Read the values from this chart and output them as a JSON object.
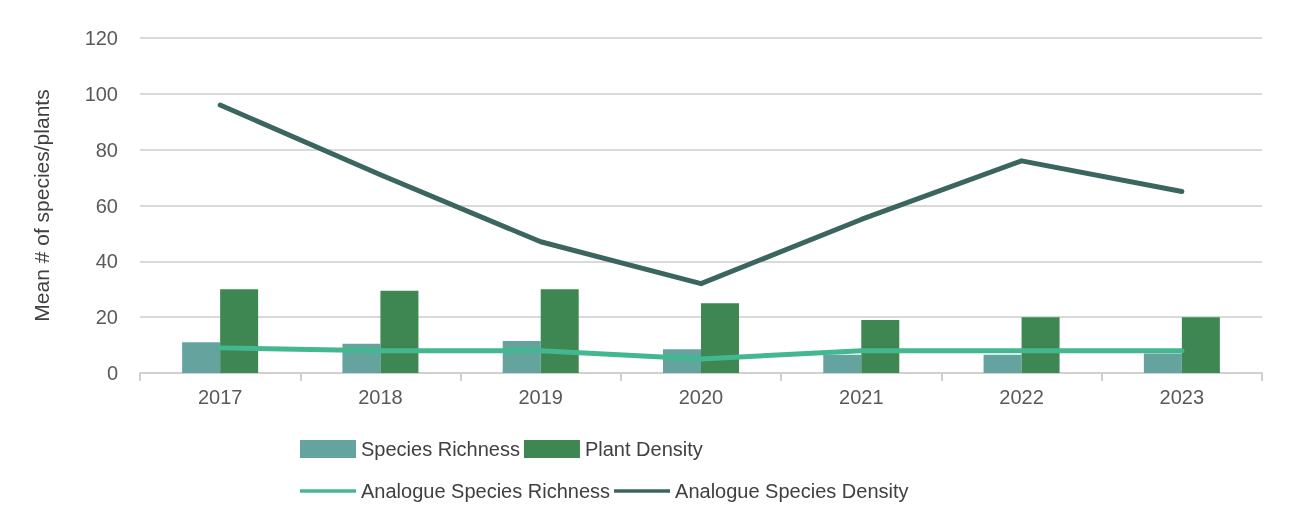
{
  "chart_data": {
    "type": "bar",
    "ylabel": "Mean # of species/plants",
    "categories": [
      "2017",
      "2018",
      "2019",
      "2020",
      "2021",
      "2022",
      "2023"
    ],
    "series": [
      {
        "name": "Species Richness",
        "color": "#65a39f",
        "values": [
          11,
          10.5,
          11.5,
          8.5,
          6.5,
          6.5,
          7
        ]
      },
      {
        "name": "Plant Density",
        "color": "#3e8752",
        "values": [
          30,
          29.5,
          30,
          25,
          19,
          20,
          20
        ]
      },
      {
        "name": "Analogue Species Richness",
        "type": "line",
        "color": "#43b890",
        "values": [
          9,
          8,
          8,
          5,
          8,
          8,
          8
        ]
      },
      {
        "name": "Analogue Species Density",
        "type": "line",
        "color": "#3b6660",
        "values": [
          96,
          71,
          47,
          32,
          55,
          76,
          65
        ]
      }
    ],
    "ylim": [
      0,
      120
    ],
    "yticks": [
      0,
      20,
      40,
      60,
      80,
      100,
      120
    ],
    "grid": "y",
    "legend": "bottom",
    "marker": "none"
  }
}
